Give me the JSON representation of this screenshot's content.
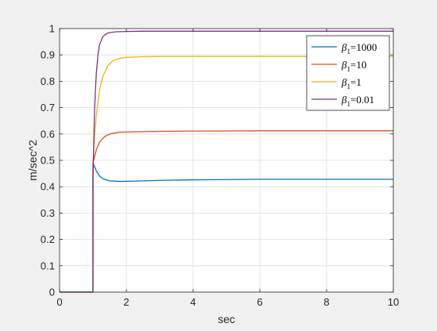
{
  "chart_data": {
    "type": "line",
    "title": "",
    "xlabel": "sec",
    "ylabel": "m/sec^2",
    "xlim": [
      0,
      10
    ],
    "ylim": [
      0,
      1
    ],
    "xticks": [
      0,
      2,
      4,
      6,
      8,
      10
    ],
    "yticks": [
      0,
      0.1,
      0.2,
      0.3,
      0.4,
      0.5,
      0.6,
      0.7,
      0.8,
      0.9,
      1
    ],
    "grid": true,
    "legend_position": "top-right",
    "series": [
      {
        "name": "β1=1000",
        "legend_symbol": "β",
        "legend_subscript": "1",
        "legend_value": "=1000",
        "color": "#0072BD",
        "x": [
          0,
          0.999,
          1.0,
          1.1,
          1.2,
          1.3,
          1.5,
          1.8,
          2.2,
          3,
          4,
          6,
          8,
          10
        ],
        "y": [
          0,
          0,
          0.49,
          0.46,
          0.44,
          0.43,
          0.422,
          0.42,
          0.421,
          0.424,
          0.426,
          0.428,
          0.428,
          0.428
        ]
      },
      {
        "name": "β1=10",
        "legend_symbol": "β",
        "legend_subscript": "1",
        "legend_value": "=10",
        "color": "#D95319",
        "x": [
          0,
          0.999,
          1.0,
          1.1,
          1.2,
          1.35,
          1.5,
          1.8,
          2.2,
          3,
          4,
          6,
          8,
          10
        ],
        "y": [
          0,
          0,
          0.49,
          0.54,
          0.57,
          0.59,
          0.6,
          0.607,
          0.608,
          0.61,
          0.611,
          0.612,
          0.612,
          0.612
        ]
      },
      {
        "name": "β1=1",
        "legend_symbol": "β",
        "legend_subscript": "1",
        "legend_value": "=1",
        "color": "#EDB120",
        "x": [
          0,
          0.999,
          1.0,
          1.05,
          1.1,
          1.2,
          1.3,
          1.45,
          1.6,
          1.8,
          2.0,
          2.5,
          3,
          4,
          6,
          8,
          10
        ],
        "y": [
          0,
          0,
          0.49,
          0.59,
          0.67,
          0.77,
          0.82,
          0.86,
          0.878,
          0.887,
          0.891,
          0.893,
          0.894,
          0.894,
          0.894,
          0.894,
          0.894
        ]
      },
      {
        "name": "β1=0.01",
        "legend_symbol": "β",
        "legend_subscript": "1",
        "legend_value": "=0.01",
        "color": "#7E2F8E",
        "x": [
          0,
          0.999,
          1.0,
          1.02,
          1.05,
          1.1,
          1.15,
          1.2,
          1.3,
          1.4,
          1.5,
          1.7,
          2.0,
          2.5,
          3,
          4,
          6,
          8,
          10
        ],
        "y": [
          0,
          0,
          0.42,
          0.55,
          0.7,
          0.83,
          0.9,
          0.94,
          0.97,
          0.98,
          0.985,
          0.988,
          0.989,
          0.99,
          0.99,
          0.99,
          0.99,
          0.99,
          0.99
        ]
      }
    ]
  }
}
